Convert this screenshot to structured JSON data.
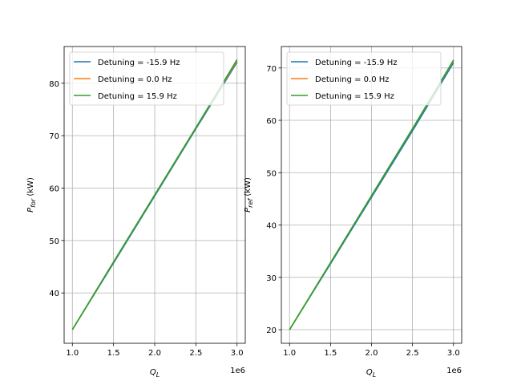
{
  "chart_data": [
    {
      "type": "line",
      "xlabel_main": "Q",
      "xlabel_sub": "L",
      "ylabel_main": "P",
      "ylabel_sub": "for",
      "ylabel_unit": " (kW)",
      "x_offset_label": "1e6",
      "xlim": [
        0.9,
        3.1
      ],
      "ylim": [
        30.4,
        87.0
      ],
      "xticks": [
        1.0,
        1.5,
        2.0,
        2.5,
        3.0
      ],
      "xtick_labels": [
        "1.0",
        "1.5",
        "2.0",
        "2.5",
        "3.0"
      ],
      "yticks": [
        40,
        50,
        60,
        70,
        80
      ],
      "ytick_labels": [
        "40",
        "50",
        "60",
        "70",
        "80"
      ],
      "grid": true,
      "legend_position": "upper-left",
      "series": [
        {
          "name": "Detuning = -15.9 Hz",
          "color": "#1f77b4",
          "x": [
            1.0,
            1.5,
            2.0,
            2.5,
            3.0
          ],
          "y": [
            33.0,
            45.7,
            58.5,
            71.3,
            84.0
          ]
        },
        {
          "name": "Detuning = 0.0 Hz",
          "color": "#ff7f0e",
          "x": [
            1.0,
            1.5,
            2.0,
            2.5,
            3.0
          ],
          "y": [
            33.0,
            45.9,
            58.7,
            71.5,
            84.3
          ]
        },
        {
          "name": "Detuning = 15.9 Hz",
          "color": "#2ca02c",
          "x": [
            1.0,
            1.5,
            2.0,
            2.5,
            3.0
          ],
          "y": [
            33.0,
            45.9,
            58.7,
            71.5,
            84.5
          ]
        }
      ]
    },
    {
      "type": "line",
      "xlabel_main": "Q",
      "xlabel_sub": "L",
      "ylabel_main": "P",
      "ylabel_sub": "ref",
      "ylabel_unit": " (kW)",
      "x_offset_label": "1e6",
      "xlim": [
        0.9,
        3.1
      ],
      "ylim": [
        17.4,
        74.1
      ],
      "xticks": [
        1.0,
        1.5,
        2.0,
        2.5,
        3.0
      ],
      "xtick_labels": [
        "1.0",
        "1.5",
        "2.0",
        "2.5",
        "3.0"
      ],
      "yticks": [
        20,
        30,
        40,
        50,
        60,
        70
      ],
      "ytick_labels": [
        "20",
        "30",
        "40",
        "50",
        "60",
        "70"
      ],
      "grid": true,
      "legend_position": "upper-left",
      "series": [
        {
          "name": "Detuning = -15.9 Hz",
          "color": "#1f77b4",
          "x": [
            1.0,
            1.5,
            2.0,
            2.5,
            3.0
          ],
          "y": [
            20.0,
            32.6,
            45.3,
            58.0,
            71.0
          ]
        },
        {
          "name": "Detuning = 0.0 Hz",
          "color": "#ff7f0e",
          "x": [
            1.0,
            1.5,
            2.0,
            2.5,
            3.0
          ],
          "y": [
            20.0,
            32.8,
            45.6,
            58.4,
            71.4
          ]
        },
        {
          "name": "Detuning = 15.9 Hz",
          "color": "#2ca02c",
          "x": [
            1.0,
            1.5,
            2.0,
            2.5,
            3.0
          ],
          "y": [
            20.0,
            32.8,
            45.6,
            58.4,
            71.5
          ]
        }
      ]
    }
  ]
}
